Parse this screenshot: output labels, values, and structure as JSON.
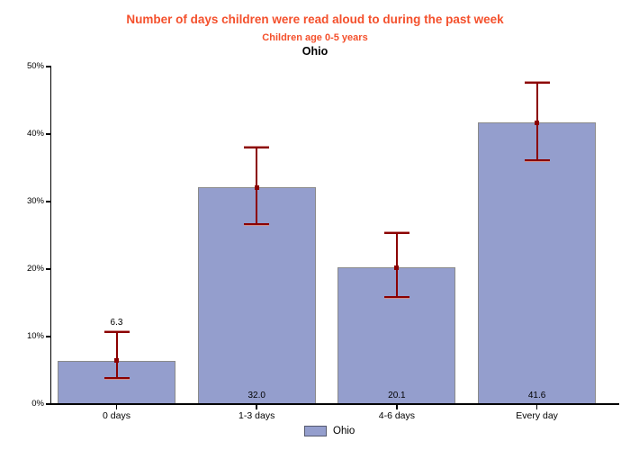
{
  "header": {
    "title": "Number of days children were read aloud to during the past week",
    "subtitle": "Children age 0-5 years",
    "region": "Ohio"
  },
  "colors": {
    "title_text": "#f4502c",
    "subtitle_text": "#f4502c",
    "region_text": "#000000",
    "bar_fill": "#949ecd",
    "bar_border": "#8a8a8a",
    "error_bar": "#8b0000",
    "error_cap_soft": "#cf8f8c",
    "axis": "#000000",
    "legend_swatch_border": "#55596e"
  },
  "chart_data": {
    "type": "bar",
    "title": "Number of days children were read aloud to during the past week",
    "subtitle": "Children age 0-5 years",
    "region": "Ohio",
    "categories": [
      "0 days",
      "1-3 days",
      "4-6 days",
      "Every day"
    ],
    "values": [
      6.3,
      32.0,
      20.1,
      41.6
    ],
    "value_labels": [
      "6.3",
      "32.0",
      "20.1",
      "41.6"
    ],
    "ci_low": [
      3.7,
      26.5,
      15.8,
      36.0
    ],
    "ci_high": [
      10.5,
      37.9,
      25.2,
      47.5
    ],
    "label_placement": [
      "above_ci",
      "inside_bottom",
      "inside_bottom",
      "inside_bottom"
    ],
    "xlabel": "",
    "ylabel": "",
    "ylim": [
      0,
      50
    ],
    "yticks": [
      0,
      10,
      20,
      30,
      40,
      50
    ],
    "ytick_labels": [
      "0%",
      "10%",
      "20%",
      "30%",
      "40%",
      "50%"
    ],
    "grid": false,
    "error_bars": true,
    "legend_position": "bottom-center",
    "legend": [
      {
        "label": "Ohio",
        "color": "#949ecd"
      }
    ]
  }
}
